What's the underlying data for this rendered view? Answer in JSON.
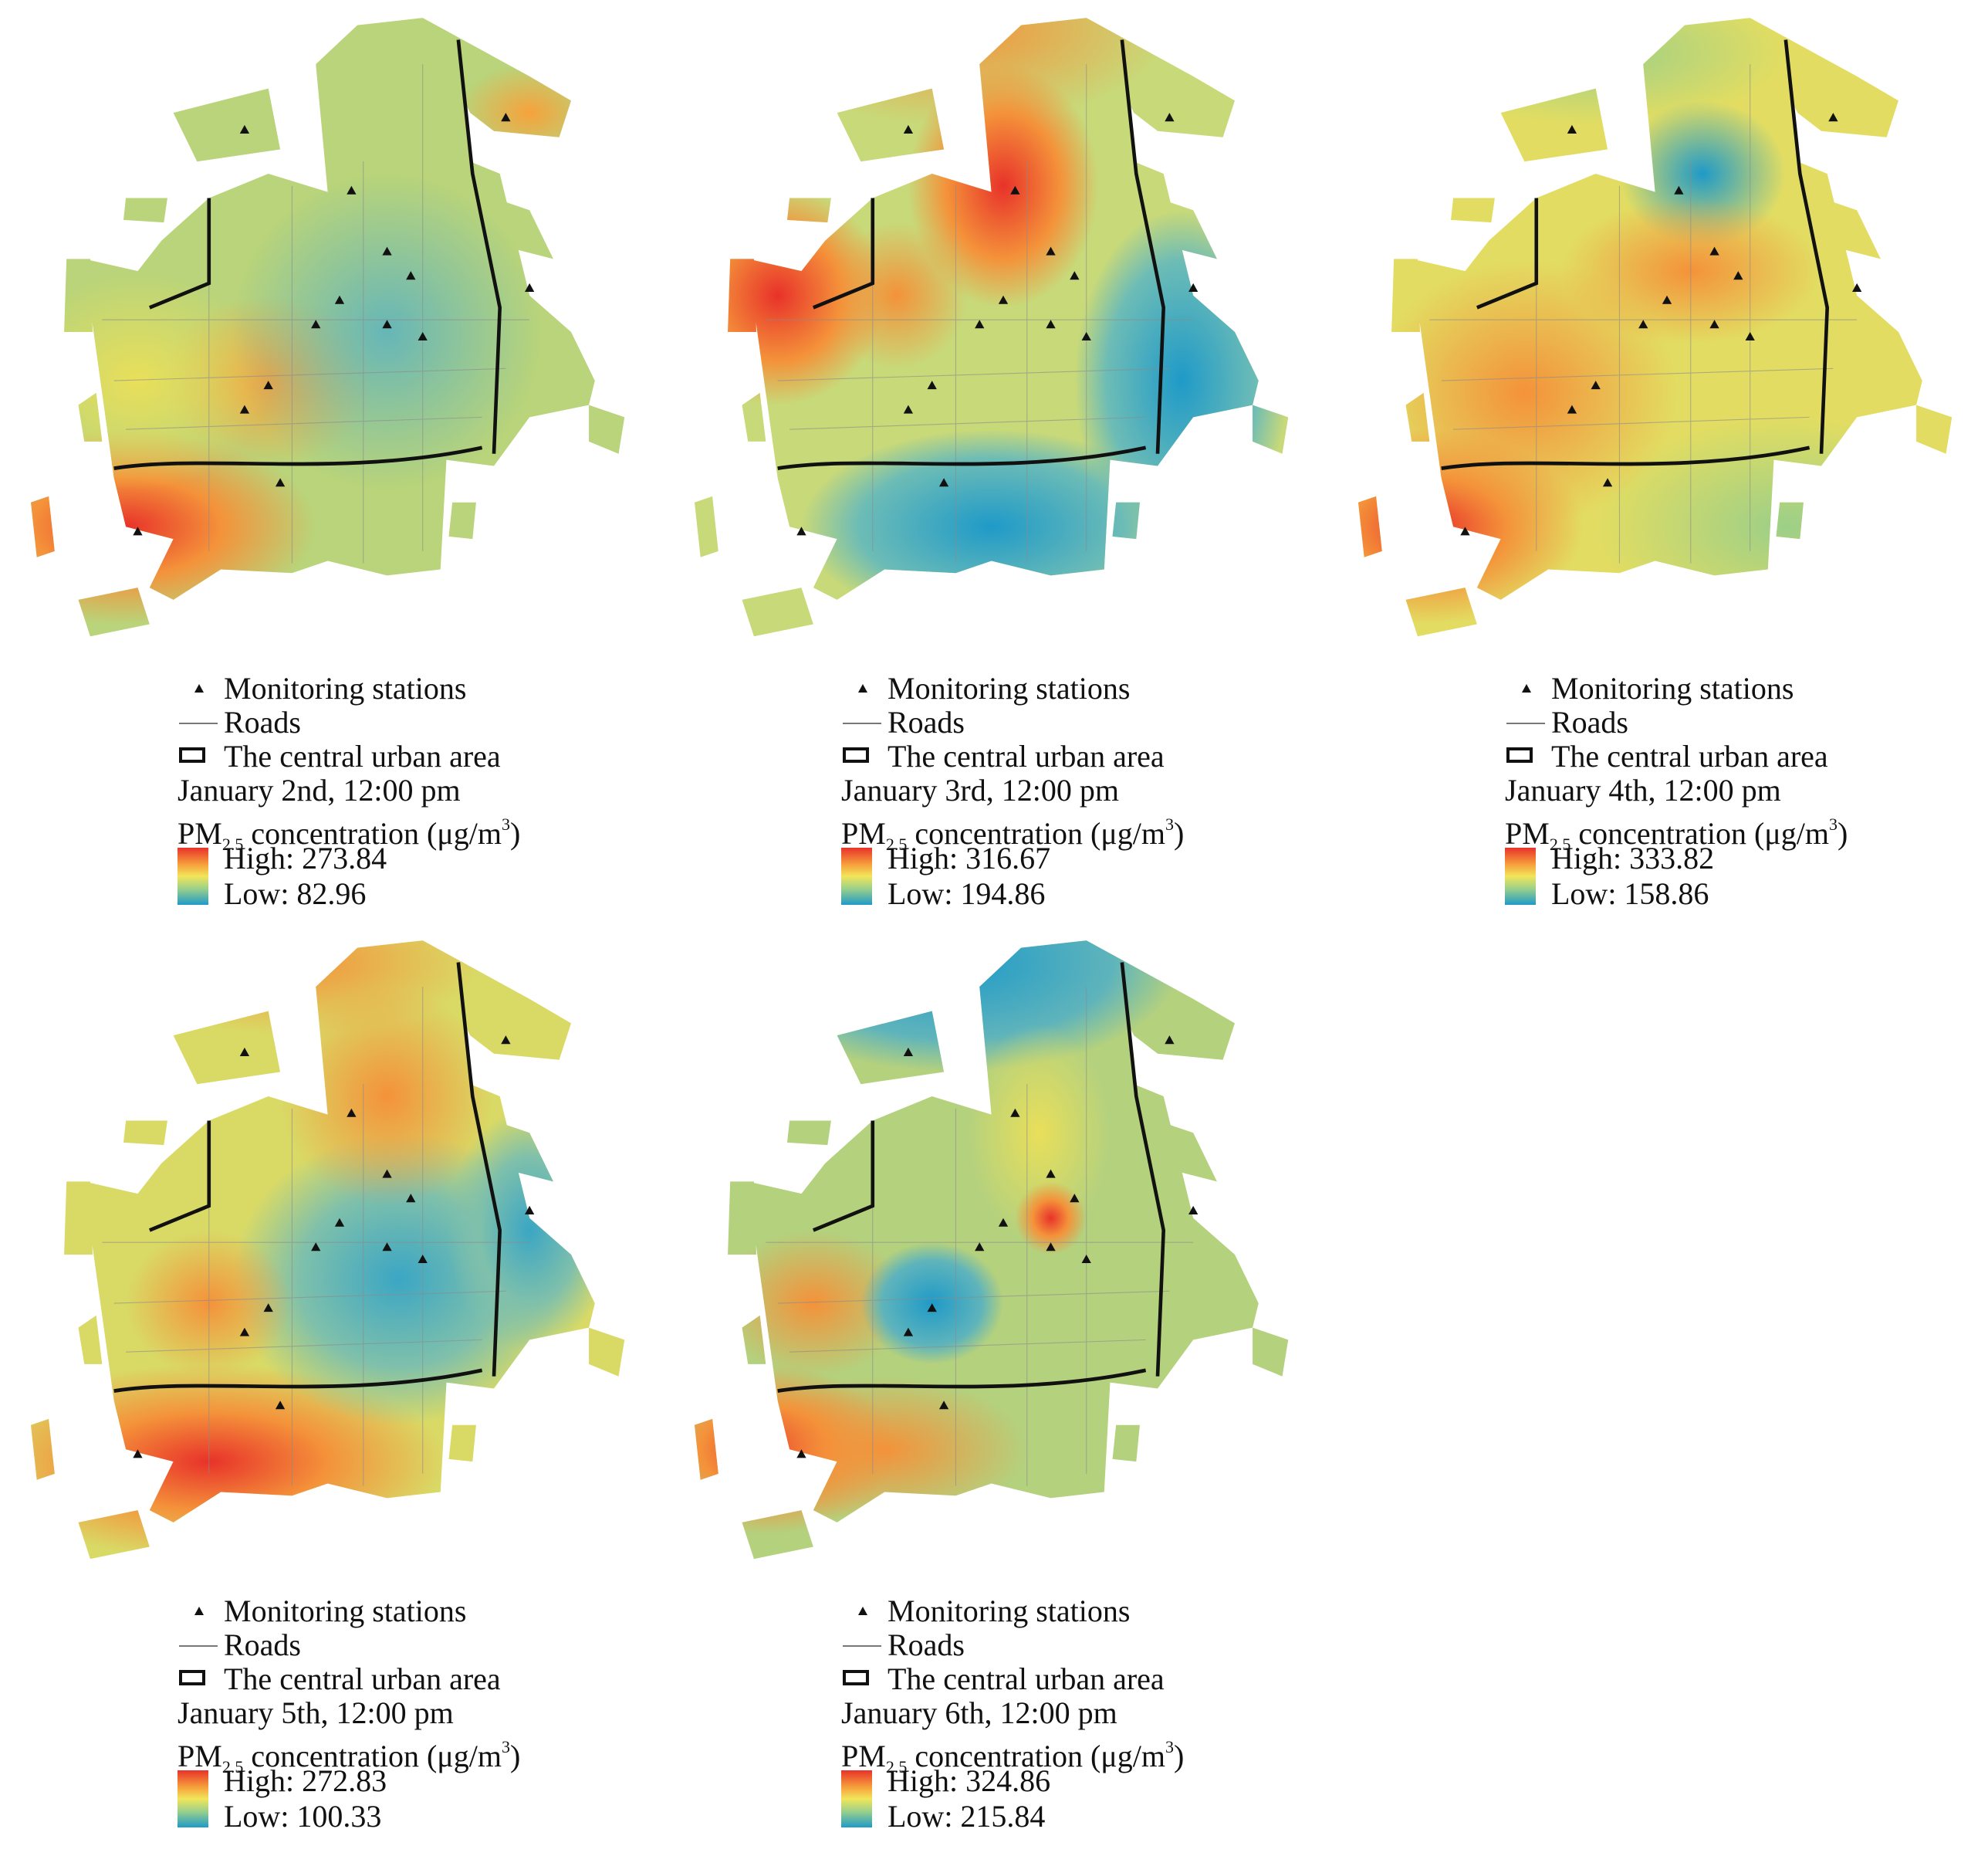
{
  "legend": {
    "stations": "Monitoring stations",
    "roads": "Roads",
    "area": "The central urban area",
    "concentration_pre": "PM",
    "concentration_sub": "2.5",
    "concentration_mid": " concentration (μg/m",
    "concentration_sup": "3",
    "concentration_post": ")"
  },
  "colors": {
    "high": "#e8322a",
    "mid": "#f2e55a",
    "low": "#1f9ac8",
    "roads": "#8a8a8a",
    "boundary": "#111111"
  },
  "panels": [
    {
      "date": "January 2nd, 12:00 pm",
      "high": "High: 273.84",
      "low": "Low: 82.96",
      "high_value": 273.84,
      "low_value": 82.96
    },
    {
      "date": "January 3rd, 12:00 pm",
      "high": "High: 316.67",
      "low": "Low: 194.86",
      "high_value": 316.67,
      "low_value": 194.86
    },
    {
      "date": "January 4th, 12:00 pm",
      "high": "High: 333.82",
      "low": "Low: 158.86",
      "high_value": 333.82,
      "low_value": 158.86
    },
    {
      "date": "January 5th, 12:00 pm",
      "high": "High: 272.83",
      "low": "Low: 100.33",
      "high_value": 272.83,
      "low_value": 100.33
    },
    {
      "date": "January 6th, 12:00 pm",
      "high": "High: 324.86",
      "low": "Low: 215.84",
      "high_value": 324.86,
      "low_value": 215.84
    }
  ]
}
